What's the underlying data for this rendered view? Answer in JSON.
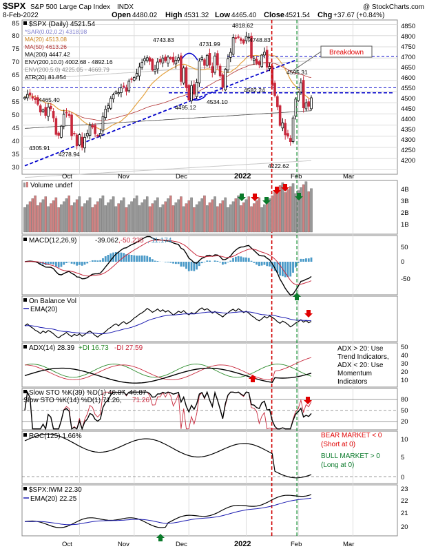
{
  "header": {
    "symbol": "$SPX",
    "name": "S&P 500 Large Cap Index",
    "exchange": "INDX",
    "date": "8-Feb-2022",
    "open_label": "Open",
    "open": "4480.02",
    "high_label": "High",
    "high": "4531.32",
    "low_label": "Low",
    "low": "4465.40",
    "close_label": "Close",
    "close": "4521.54",
    "chg_label": "Chg",
    "chg": "+37.67 (+0.84%)",
    "watermark": "@ StockCharts.com"
  },
  "colors": {
    "up": "#000000",
    "down": "#c8283c",
    "sar": "#7f7fcf",
    "ma20": "#e4a23f",
    "ma50": "#b03030",
    "ma200": "#444444",
    "env": "#bbbbbb",
    "vol_up": "#999999",
    "vol_down": "#d08080",
    "trend": "#0000cc",
    "red_arrow": "#e00000",
    "green_arrow": "#0a7a2a"
  },
  "x_axis": {
    "labels": [
      "Oct",
      "Nov",
      "Dec",
      "2022",
      "Feb",
      "Mar"
    ]
  },
  "price_panel": {
    "legend": [
      "$SPX (Daily) 4521.54",
      "*SAR(0.02,0.2) 4318.98",
      "MA(20) 4513.08",
      "MA(50) 4613.26",
      "MA(200) 4447.42",
      "ENV(200,10.0) 4002.68 - 4892.16",
      "ENV(200,5.0) 4225.05 - 4669.79",
      "ATR(20) 81.854"
    ],
    "left_axis": [
      "85",
      "80",
      "75",
      "70",
      "65",
      "60",
      "55",
      "50",
      "45",
      "40",
      "35",
      "30"
    ],
    "right_axis": [
      "4850",
      "4800",
      "4750",
      "4700",
      "4650",
      "4600",
      "4550",
      "4500",
      "4450",
      "4400",
      "4350",
      "4300",
      "4250",
      "4200"
    ],
    "annotations": [
      "4465.40",
      "4305.91",
      "4278.94",
      "4743.83",
      "4495.12",
      "4731.99",
      "4534.10",
      "4818.62",
      "4748.83",
      "4582.24",
      "4595.31",
      "4222.62"
    ],
    "breakdown_label": "Breakdown"
  },
  "volume_panel": {
    "legend": "Volume undef",
    "right_axis": [
      "4B",
      "3B",
      "2B",
      "1B"
    ]
  },
  "macd_panel": {
    "legend_name": "MACD(12,26,9)",
    "macd": "-39.062",
    "signal": ",-50.235",
    "hist": ", 11.174",
    "right_axis": [
      "50",
      "0",
      "-50"
    ]
  },
  "obv_panel": {
    "legend": "On Balance Vol",
    "ema": "EMA(20)"
  },
  "adx_panel": {
    "legend_adx": "ADX(14) 28.39",
    "legend_pdi": "+DI 16.73",
    "legend_mdi": "-DI 27.59",
    "right_axis": [
      "50",
      "40",
      "30",
      "20",
      "10"
    ],
    "note": [
      "ADX > 20: Use",
      "Trend Indicators,",
      "ADX < 20: Use",
      "Momentum",
      "Indicators"
    ]
  },
  "sto_panel": {
    "legend1": "Slow STO %K(39) %D(1) 46.87, 46.87",
    "legend2_a": "Slow STO %K(14) %D(1) 71.26, ",
    "legend2_b": "71.26",
    "right_axis": [
      "80",
      "50",
      "20"
    ]
  },
  "roc_panel": {
    "legend": "ROC(125) 1.66%",
    "right_axis": [
      "10",
      "5",
      "0"
    ],
    "bear": [
      "BEAR MARKET < 0",
      "(Short at 0)"
    ],
    "bull": [
      "BULL MARKET > 0",
      "(Long at 0)"
    ]
  },
  "ratio_panel": {
    "legend": "$SPX:IWM 22.30",
    "ema": "EMA(20) 22.25",
    "right_axis": [
      "23",
      "22",
      "21",
      "20"
    ]
  },
  "chart_data": {
    "type": "candlestick",
    "x": [
      "2021-09-01",
      "2021-09-02",
      "2021-09-03",
      "2021-09-07",
      "2021-09-08",
      "2021-09-09",
      "2021-09-10",
      "2021-09-13",
      "2021-09-14",
      "2021-09-15",
      "2021-09-16",
      "2021-09-17",
      "2021-09-20",
      "2021-09-21",
      "2021-09-22",
      "2021-09-23",
      "2021-09-24",
      "2021-09-27",
      "2021-09-28",
      "2021-09-29",
      "2021-09-30",
      "2021-10-01",
      "2021-10-04",
      "2021-10-05",
      "2021-10-06",
      "2021-10-07",
      "2021-10-08",
      "2021-10-11",
      "2021-10-12",
      "2021-10-13",
      "2021-10-14",
      "2021-10-15",
      "2021-10-18",
      "2021-10-19",
      "2021-10-20",
      "2021-10-21",
      "2021-10-22",
      "2021-10-25",
      "2021-10-26",
      "2021-10-27",
      "2021-10-28",
      "2021-10-29",
      "2021-11-01",
      "2021-11-02",
      "2021-11-03",
      "2021-11-04",
      "2021-11-05",
      "2021-11-08",
      "2021-11-09",
      "2021-11-10",
      "2021-11-11",
      "2021-11-12",
      "2021-11-15",
      "2021-11-16",
      "2021-11-17",
      "2021-11-18",
      "2021-11-19",
      "2021-11-22",
      "2021-11-23",
      "2021-11-24",
      "2021-11-26",
      "2021-11-29",
      "2021-11-30",
      "2021-12-01",
      "2021-12-02",
      "2021-12-03",
      "2021-12-06",
      "2021-12-07",
      "2021-12-08",
      "2021-12-09",
      "2021-12-10",
      "2021-12-13",
      "2021-12-14",
      "2021-12-15",
      "2021-12-16",
      "2021-12-17",
      "2021-12-20",
      "2021-12-21",
      "2021-12-22",
      "2021-12-23",
      "2021-12-27",
      "2021-12-28",
      "2021-12-29",
      "2021-12-30",
      "2021-12-31",
      "2022-01-03",
      "2022-01-04",
      "2022-01-05",
      "2022-01-06",
      "2022-01-07",
      "2022-01-10",
      "2022-01-11",
      "2022-01-12",
      "2022-01-13",
      "2022-01-14",
      "2022-01-18",
      "2022-01-19",
      "2022-01-20",
      "2022-01-21",
      "2022-01-24",
      "2022-01-25",
      "2022-01-26",
      "2022-01-27",
      "2022-01-28",
      "2022-01-31",
      "2022-02-01",
      "2022-02-02",
      "2022-02-03",
      "2022-02-04",
      "2022-02-07",
      "2022-02-08"
    ],
    "close": [
      4524,
      4537,
      4535,
      4520,
      4514,
      4493,
      4458,
      4468,
      4443,
      4480,
      4473,
      4432,
      4358,
      4354,
      4395,
      4448,
      4455,
      4443,
      4352,
      4360,
      4307,
      4357,
      4300,
      4345,
      4363,
      4399,
      4391,
      4361,
      4350,
      4363,
      4438,
      4471,
      4486,
      4519,
      4536,
      4549,
      4545,
      4566,
      4574,
      4551,
      4596,
      4605,
      4613,
      4631,
      4660,
      4680,
      4697,
      4701,
      4685,
      4646,
      4649,
      4682,
      4682,
      4700,
      4688,
      4704,
      4697,
      4682,
      4690,
      4701,
      4595,
      4655,
      4567,
      4513,
      4577,
      4538,
      4591,
      4686,
      4701,
      4667,
      4712,
      4668,
      4634,
      4709,
      4668,
      4620,
      4568,
      4649,
      4696,
      4725,
      4791,
      4786,
      4793,
      4778,
      4766,
      4796,
      4793,
      4700,
      4696,
      4677,
      4670,
      4713,
      4726,
      4659,
      4662,
      4577,
      4532,
      4482,
      4398,
      4410,
      4356,
      4350,
      4326,
      4432,
      4516,
      4546,
      4589,
      4477,
      4500,
      4484,
      4522
    ],
    "y_range": [
      4180,
      4870
    ],
    "series": [
      {
        "name": "MA(20)",
        "last": 4513.08
      },
      {
        "name": "MA(50)",
        "last": 4613.26
      },
      {
        "name": "MA(200)",
        "last": 4447.42
      }
    ]
  }
}
